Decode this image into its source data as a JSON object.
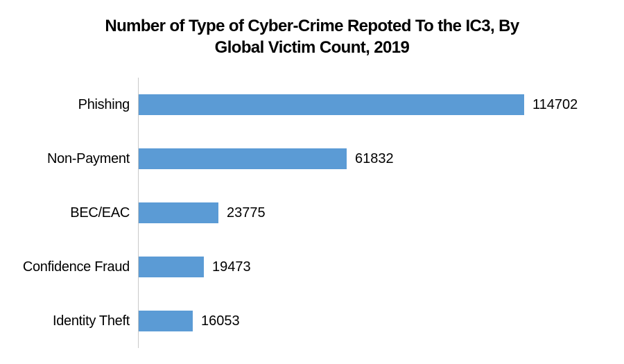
{
  "title": {
    "line1": "Number of Type of Cyber-Crime Repoted To the IC3, By",
    "line2": "Global Victim Count, 2019"
  },
  "colors": {
    "bar": "#5B9BD5",
    "axis_line": "#C9C9C9",
    "text": "#000000",
    "background": "#FFFFFF"
  },
  "chart_data": {
    "type": "bar",
    "orientation": "horizontal",
    "title": "Number of Type of Cyber-Crime Repoted To the IC3, By Global Victim Count, 2019",
    "categories": [
      "Phishing",
      "Non-Payment",
      "BEC/EAC",
      "Confidence Fraud",
      "Identity Theft"
    ],
    "values": [
      114702,
      61832,
      23775,
      19473,
      16053
    ],
    "data_labels": [
      "114702",
      "61832",
      "23775",
      "19473",
      "16053"
    ],
    "xlabel": "",
    "ylabel": "",
    "xlim": [
      0,
      120000
    ],
    "grid": false,
    "legend": false,
    "data_labels_shown": true,
    "bar_color": "#5B9BD5"
  }
}
